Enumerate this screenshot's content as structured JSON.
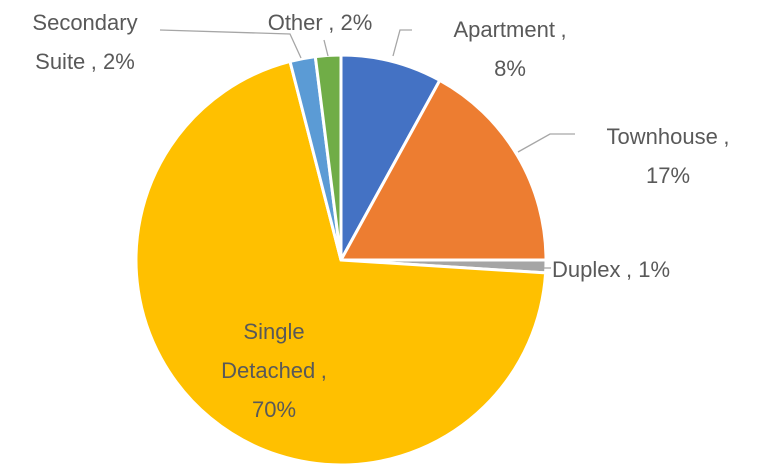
{
  "chart_data": {
    "type": "pie",
    "categories": [
      "Apartment",
      "Townhouse",
      "Duplex",
      "Single Detached",
      "Secondary Suite",
      "Other"
    ],
    "values": [
      8,
      17,
      1,
      70,
      2,
      2
    ],
    "value_labels": [
      "8%",
      "17%",
      "1%",
      "70%",
      "2%",
      "2%"
    ],
    "separator": ",",
    "colors": [
      "#4472c4",
      "#ed7d31",
      "#a5a5a5",
      "#ffc000",
      "#5b9bd5",
      "#70ad47"
    ]
  }
}
